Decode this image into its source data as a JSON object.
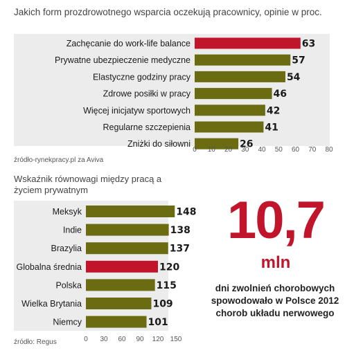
{
  "chart_data": [
    {
      "type": "bar",
      "orientation": "horizontal",
      "title": "Jakich form prozdrowotnego wsparcia oczekują pracownicy, opinie w proc.",
      "categories": [
        "Zachęcanie do work-life balance",
        "Prywatne ubezpieczenie medyczne",
        "Elastyczne godziny pracy",
        "Zdrowe  posiłki w pracy",
        "Więcej inicjatyw sportowych",
        "Regularne szczepienia",
        "Zniżki do siłowni"
      ],
      "values": [
        63,
        57,
        54,
        46,
        42,
        41,
        26
      ],
      "highlight_index": 0,
      "xlim": [
        0,
        80
      ],
      "xticks": [
        "0",
        "10",
        "20",
        "30",
        "40",
        "50",
        "60",
        "70",
        "80"
      ],
      "source": "źródło-rynekpracy.pl za Aviva",
      "colors": {
        "bar": "#6b6b12",
        "highlight": "#c0152b"
      }
    },
    {
      "type": "bar",
      "orientation": "horizontal",
      "title": "Wskaźnik równowagi między pracą a życiem prywatnym",
      "categories": [
        "Meksyk",
        "Indie",
        "Brazylia",
        "Globalna średnia",
        "Polska",
        "Wielka Brytania",
        "Niemcy"
      ],
      "values": [
        148,
        138,
        137,
        120,
        115,
        109,
        101
      ],
      "highlight_index": 3,
      "xlim": [
        0,
        150
      ],
      "xticks": [
        "0",
        "30",
        "60",
        "90",
        "120",
        "150"
      ],
      "source": "źródło: Regus",
      "colors": {
        "bar": "#6b6b12",
        "highlight": "#c0152b"
      }
    }
  ],
  "highlight": {
    "number": "10,7",
    "unit": "mln",
    "description": "dni zwolnień chorobowych spowodowało w Polsce 2012 chorob układu nerwowego"
  }
}
